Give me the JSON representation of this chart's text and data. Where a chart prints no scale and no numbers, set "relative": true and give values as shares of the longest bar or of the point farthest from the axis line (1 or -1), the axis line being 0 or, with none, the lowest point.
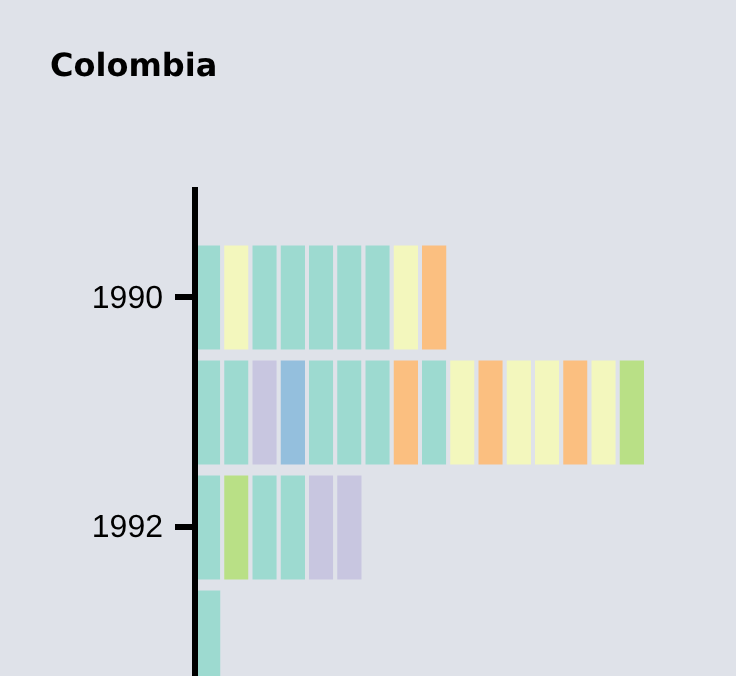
{
  "chart_data": {
    "type": "bar",
    "title": "Colombia",
    "orientation": "horizontal",
    "stacked": true,
    "relative": true,
    "grid": false,
    "categories": [
      "1990",
      null,
      "1992",
      null
    ],
    "series": [
      {
        "values": [
          0.0625,
          0.0625,
          0.0625,
          0.0625
        ],
        "colors": [
          "#9ddad0",
          "#9ddad0",
          "#9ddad0",
          "#9ddad0"
        ]
      },
      {
        "values": [
          0.0625,
          0.0625,
          0.0625,
          null
        ],
        "colors": [
          "#f3f7bd",
          "#9ddad0",
          "#b9e086",
          null
        ]
      },
      {
        "values": [
          0.0625,
          0.0625,
          0.0625,
          null
        ],
        "colors": [
          "#9ddad0",
          "#c8c6e0",
          "#9ddad0",
          null
        ]
      },
      {
        "values": [
          0.0625,
          0.0625,
          0.0625,
          null
        ],
        "colors": [
          "#9ddad0",
          "#94bfdd",
          "#9ddad0",
          null
        ]
      },
      {
        "values": [
          0.0625,
          0.0625,
          0.0625,
          null
        ],
        "colors": [
          "#9ddad0",
          "#9ddad0",
          "#c8c6e0",
          null
        ]
      },
      {
        "values": [
          0.0625,
          0.0625,
          0.0625,
          null
        ],
        "colors": [
          "#9ddad0",
          "#9ddad0",
          "#c8c6e0",
          null
        ]
      },
      {
        "values": [
          0.0625,
          0.0625,
          null,
          null
        ],
        "colors": [
          "#9ddad0",
          "#9ddad0",
          null,
          null
        ]
      },
      {
        "values": [
          0.0625,
          0.0625,
          null,
          null
        ],
        "colors": [
          "#f3f7bd",
          "#fbbf80",
          null,
          null
        ]
      },
      {
        "values": [
          0.0625,
          0.0625,
          null,
          null
        ],
        "colors": [
          "#fbbf80",
          "#9ddad0",
          null,
          null
        ]
      },
      {
        "values": [
          null,
          0.0625,
          null,
          null
        ],
        "colors": [
          null,
          "#f3f7bd",
          null,
          null
        ]
      },
      {
        "values": [
          null,
          0.0625,
          null,
          null
        ],
        "colors": [
          null,
          "#fbbf80",
          null,
          null
        ]
      },
      {
        "values": [
          null,
          0.0625,
          null,
          null
        ],
        "colors": [
          null,
          "#f3f7bd",
          null,
          null
        ]
      },
      {
        "values": [
          null,
          0.0625,
          null,
          null
        ],
        "colors": [
          null,
          "#f3f7bd",
          null,
          null
        ]
      },
      {
        "values": [
          null,
          0.0625,
          null,
          null
        ],
        "colors": [
          null,
          "#fbbf80",
          null,
          null
        ]
      },
      {
        "values": [
          null,
          0.0625,
          null,
          null
        ],
        "colors": [
          null,
          "#f3f7bd",
          null,
          null
        ]
      },
      {
        "values": [
          null,
          0.0625,
          null,
          null
        ],
        "colors": [
          null,
          "#b9e086",
          null,
          null
        ]
      }
    ]
  }
}
